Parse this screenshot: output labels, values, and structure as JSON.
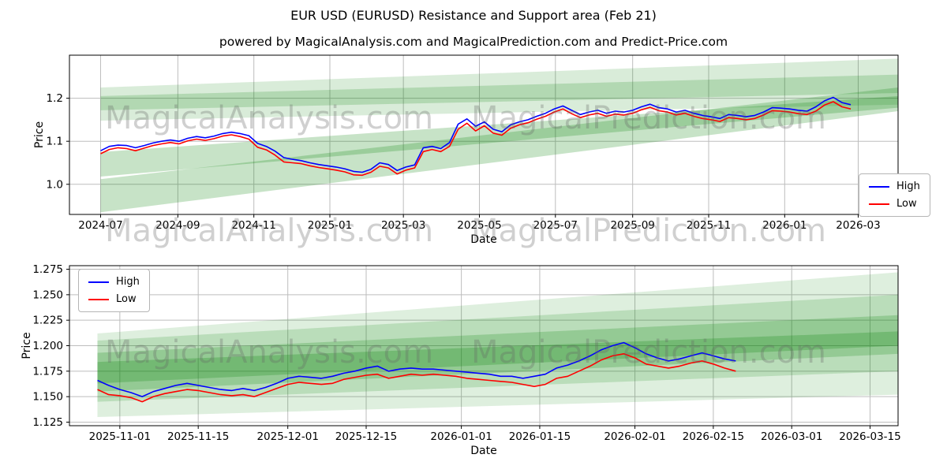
{
  "page": {
    "title": "EUR USD (EURUSD) Resistance and Support area (Feb 21)",
    "subtitle": "powered by MagicalAnalysis.com and MagicalPrediction.com and Predict-Price.com"
  },
  "watermarks": {
    "left": "MagicalAnalysis.com",
    "right": "MagicalPrediction.com"
  },
  "colors": {
    "high_line": "#0000ff",
    "low_line": "#ff0000",
    "band": "#008000",
    "grid": "#bdbdbd",
    "frame": "#000000",
    "text": "#000000"
  },
  "chart_data": [
    {
      "type": "line",
      "xlabel": "Date",
      "ylabel": "Price",
      "xlim": [
        -25,
        640
      ],
      "ylim": [
        0.93,
        1.3
      ],
      "grid": true,
      "legend_position": "right-center",
      "xticks": [
        {
          "v": 0,
          "label": "2024-07"
        },
        {
          "v": 62,
          "label": "2024-09"
        },
        {
          "v": 123,
          "label": "2024-11"
        },
        {
          "v": 184,
          "label": "2025-01"
        },
        {
          "v": 243,
          "label": "2025-03"
        },
        {
          "v": 304,
          "label": "2025-05"
        },
        {
          "v": 365,
          "label": "2025-07"
        },
        {
          "v": 427,
          "label": "2025-09"
        },
        {
          "v": 488,
          "label": "2025-11"
        },
        {
          "v": 549,
          "label": "2026-01"
        },
        {
          "v": 608,
          "label": "2026-03"
        }
      ],
      "yticks": [
        {
          "v": 1.0,
          "label": "1.0"
        },
        {
          "v": 1.1,
          "label": "1.1"
        },
        {
          "v": 1.2,
          "label": "1.2"
        }
      ],
      "x": [
        0,
        7,
        14,
        21,
        28,
        35,
        42,
        49,
        56,
        63,
        70,
        77,
        84,
        91,
        98,
        105,
        112,
        119,
        126,
        133,
        140,
        147,
        154,
        161,
        168,
        175,
        182,
        189,
        196,
        203,
        210,
        217,
        224,
        231,
        238,
        245,
        252,
        259,
        266,
        273,
        280,
        287,
        294,
        301,
        308,
        315,
        322,
        329,
        336,
        343,
        350,
        357,
        364,
        371,
        378,
        385,
        392,
        399,
        406,
        413,
        420,
        427,
        434,
        441,
        448,
        455,
        462,
        469,
        476,
        483,
        490,
        497,
        504,
        511,
        518,
        525,
        532,
        539,
        546,
        553,
        560,
        567,
        574,
        581,
        588,
        595,
        602
      ],
      "series": [
        {
          "name": "High",
          "color": "#0000ff",
          "values": [
            1.078,
            1.088,
            1.091,
            1.09,
            1.085,
            1.09,
            1.096,
            1.1,
            1.103,
            1.1,
            1.107,
            1.111,
            1.108,
            1.112,
            1.118,
            1.121,
            1.118,
            1.113,
            1.095,
            1.088,
            1.077,
            1.062,
            1.058,
            1.055,
            1.05,
            1.046,
            1.043,
            1.04,
            1.036,
            1.03,
            1.028,
            1.035,
            1.05,
            1.046,
            1.032,
            1.04,
            1.045,
            1.085,
            1.088,
            1.083,
            1.097,
            1.14,
            1.152,
            1.135,
            1.145,
            1.128,
            1.122,
            1.138,
            1.145,
            1.15,
            1.158,
            1.165,
            1.175,
            1.182,
            1.172,
            1.162,
            1.168,
            1.172,
            1.165,
            1.17,
            1.168,
            1.172,
            1.18,
            1.186,
            1.178,
            1.175,
            1.168,
            1.172,
            1.165,
            1.16,
            1.157,
            1.153,
            1.162,
            1.16,
            1.157,
            1.16,
            1.168,
            1.178,
            1.177,
            1.175,
            1.172,
            1.17,
            1.18,
            1.194,
            1.202,
            1.19,
            1.185
          ]
        },
        {
          "name": "Low",
          "color": "#ff0000",
          "values": [
            1.071,
            1.081,
            1.085,
            1.083,
            1.078,
            1.084,
            1.09,
            1.094,
            1.097,
            1.094,
            1.101,
            1.105,
            1.102,
            1.106,
            1.112,
            1.115,
            1.111,
            1.105,
            1.086,
            1.08,
            1.068,
            1.052,
            1.05,
            1.048,
            1.043,
            1.039,
            1.036,
            1.033,
            1.029,
            1.022,
            1.021,
            1.028,
            1.042,
            1.038,
            1.024,
            1.033,
            1.038,
            1.076,
            1.081,
            1.076,
            1.088,
            1.128,
            1.142,
            1.124,
            1.136,
            1.119,
            1.114,
            1.13,
            1.138,
            1.143,
            1.151,
            1.158,
            1.168,
            1.175,
            1.164,
            1.155,
            1.161,
            1.165,
            1.158,
            1.163,
            1.161,
            1.165,
            1.173,
            1.179,
            1.171,
            1.168,
            1.161,
            1.165,
            1.158,
            1.153,
            1.15,
            1.146,
            1.155,
            1.153,
            1.15,
            1.153,
            1.161,
            1.171,
            1.17,
            1.168,
            1.164,
            1.162,
            1.17,
            1.184,
            1.192,
            1.18,
            1.175
          ]
        }
      ],
      "bands": [
        {
          "x": [
            0,
            640
          ],
          "top": [
            1.225,
            1.292
          ],
          "bottom": [
            1.148,
            1.185
          ],
          "opacity": 0.15
        },
        {
          "x": [
            0,
            640
          ],
          "top": [
            1.205,
            1.255
          ],
          "bottom": [
            1.172,
            1.212
          ],
          "opacity": 0.18
        },
        {
          "x": [
            0,
            640
          ],
          "top": [
            1.012,
            1.225
          ],
          "bottom": [
            0.935,
            1.17
          ],
          "opacity": 0.22
        },
        {
          "x": [
            0,
            640
          ],
          "top": [
            1.075,
            1.205
          ],
          "bottom": [
            1.018,
            1.178
          ],
          "opacity": 0.22
        }
      ]
    },
    {
      "type": "line",
      "xlabel": "Date",
      "ylabel": "Price",
      "xlim": [
        -2,
        146
      ],
      "ylim": [
        1.1215,
        1.2785
      ],
      "grid": true,
      "legend_position": "top-left",
      "xticks": [
        {
          "v": 7,
          "label": "2025-11-01"
        },
        {
          "v": 21,
          "label": "2025-11-15"
        },
        {
          "v": 37,
          "label": "2025-12-01"
        },
        {
          "v": 51,
          "label": "2025-12-15"
        },
        {
          "v": 68,
          "label": "2026-01-01"
        },
        {
          "v": 82,
          "label": "2026-01-15"
        },
        {
          "v": 99,
          "label": "2026-02-01"
        },
        {
          "v": 113,
          "label": "2026-02-15"
        },
        {
          "v": 127,
          "label": "2026-03-01"
        },
        {
          "v": 141,
          "label": "2026-03-15"
        }
      ],
      "yticks": [
        {
          "v": 1.125,
          "label": "1.125"
        },
        {
          "v": 1.15,
          "label": "1.150"
        },
        {
          "v": 1.175,
          "label": "1.175"
        },
        {
          "v": 1.2,
          "label": "1.200"
        },
        {
          "v": 1.225,
          "label": "1.225"
        },
        {
          "v": 1.25,
          "label": "1.250"
        },
        {
          "v": 1.275,
          "label": "1.275"
        }
      ],
      "x": [
        3,
        5,
        7,
        9,
        11,
        13,
        15,
        17,
        19,
        21,
        23,
        25,
        27,
        29,
        31,
        33,
        35,
        37,
        39,
        41,
        43,
        45,
        47,
        49,
        51,
        53,
        55,
        57,
        59,
        61,
        63,
        65,
        67,
        69,
        71,
        73,
        75,
        77,
        79,
        81,
        83,
        85,
        87,
        89,
        91,
        93,
        95,
        97,
        99,
        101,
        103,
        105,
        107,
        109,
        111,
        113,
        115,
        117
      ],
      "series": [
        {
          "name": "High",
          "color": "#0000ff",
          "values": [
            1.166,
            1.161,
            1.157,
            1.154,
            1.15,
            1.155,
            1.158,
            1.161,
            1.163,
            1.161,
            1.159,
            1.157,
            1.156,
            1.158,
            1.156,
            1.159,
            1.163,
            1.168,
            1.17,
            1.169,
            1.168,
            1.17,
            1.173,
            1.175,
            1.178,
            1.18,
            1.175,
            1.177,
            1.178,
            1.177,
            1.177,
            1.176,
            1.175,
            1.174,
            1.173,
            1.172,
            1.17,
            1.17,
            1.168,
            1.17,
            1.172,
            1.178,
            1.181,
            1.185,
            1.19,
            1.196,
            1.2,
            1.203,
            1.198,
            1.192,
            1.188,
            1.185,
            1.187,
            1.19,
            1.193,
            1.19,
            1.187,
            1.185
          ]
        },
        {
          "name": "Low",
          "color": "#ff0000",
          "values": [
            1.157,
            1.152,
            1.151,
            1.149,
            1.145,
            1.15,
            1.153,
            1.155,
            1.157,
            1.156,
            1.154,
            1.152,
            1.151,
            1.152,
            1.15,
            1.154,
            1.158,
            1.162,
            1.164,
            1.163,
            1.162,
            1.163,
            1.167,
            1.169,
            1.171,
            1.172,
            1.168,
            1.17,
            1.172,
            1.171,
            1.172,
            1.171,
            1.17,
            1.168,
            1.167,
            1.166,
            1.165,
            1.164,
            1.162,
            1.16,
            1.162,
            1.168,
            1.17,
            1.175,
            1.18,
            1.186,
            1.19,
            1.192,
            1.188,
            1.182,
            1.18,
            1.178,
            1.18,
            1.183,
            1.185,
            1.182,
            1.178,
            1.175
          ]
        }
      ],
      "bands": [
        {
          "x": [
            3,
            146
          ],
          "top": [
            1.212,
            1.272
          ],
          "bottom": [
            1.13,
            1.152
          ],
          "opacity": 0.13
        },
        {
          "x": [
            3,
            146
          ],
          "top": [
            1.205,
            1.25
          ],
          "bottom": [
            1.145,
            1.175
          ],
          "opacity": 0.16
        },
        {
          "x": [
            3,
            146
          ],
          "top": [
            1.193,
            1.23
          ],
          "bottom": [
            1.155,
            1.192
          ],
          "opacity": 0.2
        },
        {
          "x": [
            3,
            146
          ],
          "top": [
            1.184,
            1.214
          ],
          "bottom": [
            1.163,
            1.2
          ],
          "opacity": 0.22
        }
      ]
    }
  ]
}
